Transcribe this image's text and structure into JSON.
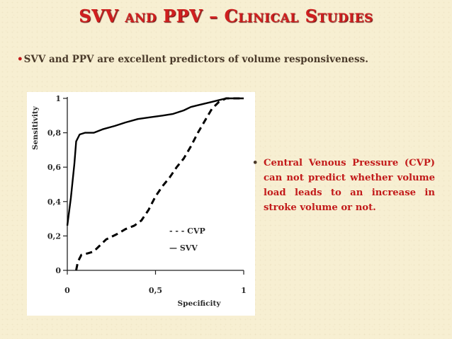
{
  "slide": {
    "title": "SVV and PPV – Clinical Studies",
    "subtitle_bullet": "•",
    "subtitle": "SVV and PPV are excellent predictors of volume responsiveness.",
    "bullet_marker": "•",
    "bullet_text": "Central Venous Pressure (CVP) can not predict whether volume load leads to an increase in stroke volume or not."
  },
  "chart_data": {
    "type": "line",
    "xlabel": "Specificity",
    "ylabel": "Sensitivity",
    "xlim": [
      0,
      1
    ],
    "ylim": [
      0,
      1
    ],
    "x_ticks": [
      "0",
      "0,5",
      "1"
    ],
    "y_ticks": [
      "0",
      "0,2",
      "0,4",
      "0,6",
      "0,8",
      "1"
    ],
    "grid": false,
    "legend_position": "inside-right",
    "series": [
      {
        "name": "CVP",
        "legend_label": "- - - CVP",
        "style": "dashed",
        "color": "#000000",
        "x": [
          0.05,
          0.06,
          0.08,
          0.12,
          0.15,
          0.18,
          0.22,
          0.28,
          0.33,
          0.38,
          0.42,
          0.46,
          0.5,
          0.54,
          0.58,
          0.62,
          0.66,
          0.7,
          0.74,
          0.78,
          0.82,
          0.86,
          0.9,
          0.95,
          1.0
        ],
        "y": [
          0.0,
          0.05,
          0.09,
          0.1,
          0.11,
          0.14,
          0.18,
          0.21,
          0.24,
          0.26,
          0.29,
          0.35,
          0.43,
          0.49,
          0.54,
          0.6,
          0.65,
          0.72,
          0.8,
          0.87,
          0.94,
          0.98,
          1.0,
          1.0,
          1.0
        ]
      },
      {
        "name": "SVV",
        "legend_label": "— SVV",
        "style": "solid",
        "color": "#000000",
        "x": [
          0.0,
          0.02,
          0.04,
          0.05,
          0.07,
          0.1,
          0.15,
          0.2,
          0.27,
          0.33,
          0.4,
          0.47,
          0.54,
          0.6,
          0.66,
          0.7,
          0.74,
          0.78,
          0.82,
          0.86,
          0.9,
          0.94,
          1.0
        ],
        "y": [
          0.26,
          0.42,
          0.62,
          0.75,
          0.79,
          0.8,
          0.8,
          0.82,
          0.84,
          0.86,
          0.88,
          0.89,
          0.9,
          0.91,
          0.93,
          0.95,
          0.96,
          0.97,
          0.98,
          0.99,
          1.0,
          1.0,
          1.0
        ]
      }
    ]
  }
}
